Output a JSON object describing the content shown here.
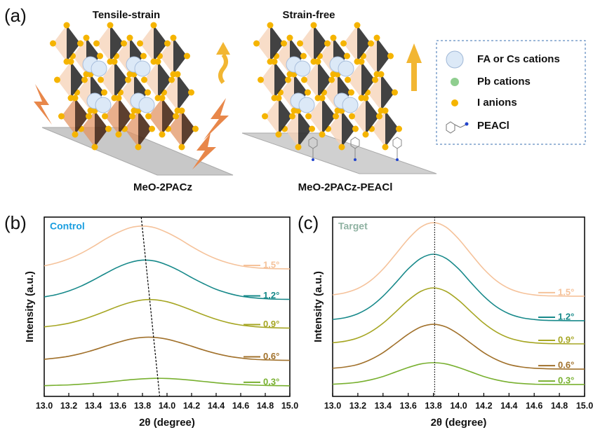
{
  "panel_labels": [
    "(a)",
    "(b)",
    "(c)"
  ],
  "illustration": {
    "left_title": "Tensile-strain",
    "right_title": "Strain-free",
    "left_substrate": "MeO-2PACz",
    "right_substrate": "MeO-2PACz-PEACl",
    "legend": [
      "FA or Cs cations",
      "Pb cations",
      "I anions",
      "PEACl"
    ]
  },
  "chart_data": [
    {
      "type": "line",
      "title": "Control",
      "title_color": "#1a9ee0",
      "xlabel": "2θ (degree)",
      "ylabel": "Intensity (a.u.)",
      "x": [
        13.0,
        13.1,
        13.2,
        13.3,
        13.4,
        13.5,
        13.6,
        13.7,
        13.8,
        13.9,
        14.0,
        14.1,
        14.2,
        14.3,
        14.4,
        14.5,
        14.6,
        14.7,
        14.8,
        14.9,
        15.0
      ],
      "xlim": [
        13.0,
        15.0
      ],
      "ylim": [
        0,
        10
      ],
      "xticks": [
        {
          "value": 13.0,
          "label": "13.0"
        },
        13.2,
        13.4,
        13.6,
        13.8,
        {
          "value": 14.0,
          "label": "14.0"
        },
        14.2,
        14.4,
        14.6,
        14.8,
        {
          "value": 15.0,
          "label": "15.0"
        }
      ],
      "guide": {
        "x": [
          13.79,
          13.94
        ],
        "y": [
          10,
          0
        ],
        "style": "dashed"
      },
      "series": [
        {
          "name": "1.5°",
          "color": "#f5c29a",
          "values": [
            7.28,
            7.44,
            7.67,
            7.98,
            8.36,
            8.78,
            9.14,
            9.41,
            9.5,
            9.41,
            9.14,
            8.78,
            8.36,
            7.98,
            7.67,
            7.44,
            7.28,
            7.19,
            7.14,
            7.12,
            7.11
          ]
        },
        {
          "name": "1.2°",
          "color": "#17898a",
          "values": [
            5.55,
            5.68,
            5.88,
            6.15,
            6.49,
            6.86,
            7.21,
            7.47,
            7.6,
            7.55,
            7.33,
            7.01,
            6.63,
            6.28,
            5.97,
            5.75,
            5.59,
            5.5,
            5.45,
            5.42,
            5.41
          ]
        },
        {
          "name": "0.9°",
          "color": "#a6a623",
          "values": [
            3.88,
            3.96,
            4.08,
            4.26,
            4.49,
            4.75,
            5.02,
            5.24,
            5.38,
            5.39,
            5.28,
            5.07,
            4.81,
            4.54,
            4.3,
            4.11,
            3.98,
            3.9,
            3.85,
            3.82,
            3.81
          ]
        },
        {
          "name": "0.6°",
          "color": "#a1712b",
          "values": [
            2.07,
            2.14,
            2.24,
            2.39,
            2.58,
            2.8,
            3.01,
            3.19,
            3.29,
            3.29,
            3.19,
            3.01,
            2.8,
            2.58,
            2.39,
            2.24,
            2.14,
            2.07,
            2.04,
            2.02,
            2.01
          ]
        },
        {
          "name": "0.3°",
          "color": "#78b02f",
          "values": [
            0.6,
            0.62,
            0.64,
            0.68,
            0.73,
            0.79,
            0.86,
            0.93,
            0.98,
            1.01,
            1.0,
            0.96,
            0.9,
            0.83,
            0.76,
            0.7,
            0.66,
            0.63,
            0.61,
            0.6,
            0.59
          ]
        }
      ]
    },
    {
      "type": "line",
      "title": "Target",
      "title_color": "#8fb2a2",
      "xlabel": "2θ (degree)",
      "ylabel": "Intensity (a.u.)",
      "x": [
        13.0,
        13.1,
        13.2,
        13.3,
        13.4,
        13.5,
        13.6,
        13.7,
        13.8,
        13.9,
        14.0,
        14.1,
        14.2,
        14.3,
        14.4,
        14.5,
        14.6,
        14.7,
        14.8,
        14.9,
        15.0
      ],
      "xlim": [
        13.0,
        15.0
      ],
      "ylim": [
        0,
        10
      ],
      "xticks": [
        {
          "value": 13.0,
          "label": "13.0"
        },
        13.2,
        13.4,
        13.6,
        13.8,
        {
          "value": 14.0,
          "label": "14.0"
        },
        14.2,
        14.4,
        14.6,
        14.8,
        {
          "value": 15.0,
          "label": "15.0"
        }
      ],
      "guide": {
        "x": [
          13.81,
          13.81
        ],
        "y": [
          10,
          0
        ],
        "style": "dotted"
      },
      "series": [
        {
          "name": "1.5°",
          "color": "#f5c29a",
          "values": [
            5.66,
            5.78,
            6.02,
            6.45,
            7.1,
            7.93,
            8.78,
            9.44,
            9.69,
            9.44,
            8.78,
            7.93,
            7.1,
            6.45,
            6.02,
            5.78,
            5.66,
            5.61,
            5.6,
            5.59,
            5.59
          ]
        },
        {
          "name": "1.2°",
          "color": "#17898a",
          "values": [
            4.29,
            4.39,
            4.61,
            5.0,
            5.59,
            6.33,
            7.11,
            7.7,
            7.93,
            7.7,
            7.11,
            6.33,
            5.59,
            5.0,
            4.61,
            4.39,
            4.29,
            4.24,
            4.23,
            4.22,
            4.22
          ]
        },
        {
          "name": "0.9°",
          "color": "#a6a623",
          "values": [
            2.99,
            3.08,
            3.26,
            3.59,
            4.08,
            4.71,
            5.36,
            5.86,
            6.05,
            5.86,
            5.36,
            4.71,
            4.08,
            3.59,
            3.26,
            3.08,
            2.99,
            2.95,
            2.94,
            2.93,
            2.93
          ]
        },
        {
          "name": "0.6°",
          "color": "#a1712b",
          "values": [
            1.57,
            1.64,
            1.78,
            2.05,
            2.44,
            2.95,
            3.47,
            3.87,
            4.02,
            3.87,
            3.47,
            2.95,
            2.44,
            2.05,
            1.78,
            1.64,
            1.57,
            1.54,
            1.53,
            1.52,
            1.52
          ]
        },
        {
          "name": "0.3°",
          "color": "#78b02f",
          "values": [
            0.68,
            0.72,
            0.79,
            0.92,
            1.11,
            1.36,
            1.61,
            1.81,
            1.88,
            1.81,
            1.61,
            1.36,
            1.11,
            0.92,
            0.79,
            0.72,
            0.68,
            0.67,
            0.66,
            0.66,
            0.66
          ]
        }
      ]
    }
  ]
}
